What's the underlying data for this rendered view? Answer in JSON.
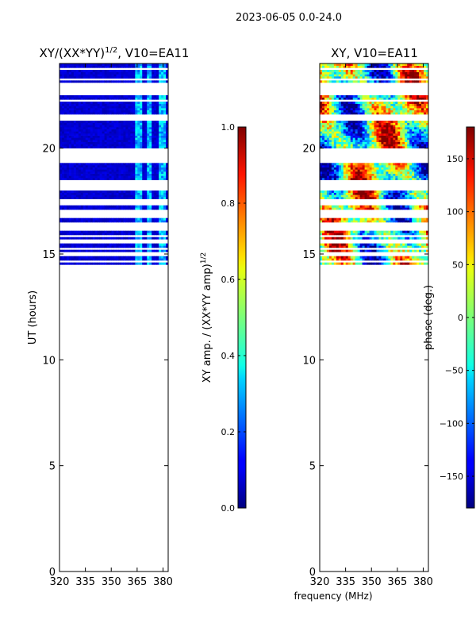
{
  "suptitle": "2023-06-05 0.0-24.0",
  "shared_xlabel": "frequency (MHz)",
  "chart_data": [
    {
      "type": "heatmap",
      "title_main": "XY/(XX*YY)",
      "title_exp": "1/2",
      "title_suffix": ", V10=EA11",
      "ylabel": "UT (hours)",
      "xlim": [
        320,
        383
      ],
      "ylim": [
        0,
        24
      ],
      "x_ticks": [
        320,
        335,
        350,
        365,
        380
      ],
      "y_ticks": [
        0,
        5,
        10,
        15,
        20
      ],
      "data_range_ut": [
        14.5,
        24.0
      ],
      "flagged_ut_bands": [
        [
          22.5,
          23.1
        ],
        [
          21.3,
          21.6
        ],
        [
          19.3,
          20.0
        ],
        [
          18.0,
          18.5
        ],
        [
          17.4,
          17.6
        ],
        [
          16.8,
          17.1
        ],
        [
          16.2,
          16.4
        ],
        [
          15.5,
          15.7
        ],
        [
          15.0,
          15.1
        ]
      ],
      "bright_freq_bands_mhz": [
        [
          364,
          368
        ],
        [
          371,
          374
        ],
        [
          377,
          381
        ]
      ],
      "colorbar": {
        "label_main": "XY amp. / (XX*YY amp)",
        "label_exp": "1/2",
        "min": 0.0,
        "max": 1.0,
        "ticks": [
          "0.0",
          "0.2",
          "0.4",
          "0.6",
          "0.8",
          "1.0"
        ],
        "tick_values": [
          0.0,
          0.2,
          0.4,
          0.6,
          0.8,
          1.0
        ]
      }
    },
    {
      "type": "heatmap",
      "title": "XY, V10=EA11",
      "xlim": [
        320,
        383
      ],
      "ylim": [
        0,
        24
      ],
      "x_ticks": [
        320,
        335,
        350,
        365,
        380
      ],
      "y_ticks": [
        0,
        5,
        10,
        15,
        20
      ],
      "data_range_ut": [
        14.5,
        24.0
      ],
      "flagged_ut_bands": [
        [
          22.5,
          23.1
        ],
        [
          21.3,
          21.6
        ],
        [
          19.3,
          20.0
        ],
        [
          18.0,
          18.5
        ],
        [
          17.4,
          17.6
        ],
        [
          16.8,
          17.1
        ],
        [
          16.2,
          16.4
        ],
        [
          15.5,
          15.7
        ],
        [
          15.0,
          15.1
        ]
      ],
      "colorbar": {
        "label": "phase (deg.)",
        "min": -180,
        "max": 180,
        "ticks": [
          "150",
          "100",
          "50",
          "0",
          "−50",
          "−100",
          "−150"
        ],
        "tick_values": [
          150,
          100,
          50,
          0,
          -50,
          -100,
          -150
        ]
      }
    }
  ]
}
